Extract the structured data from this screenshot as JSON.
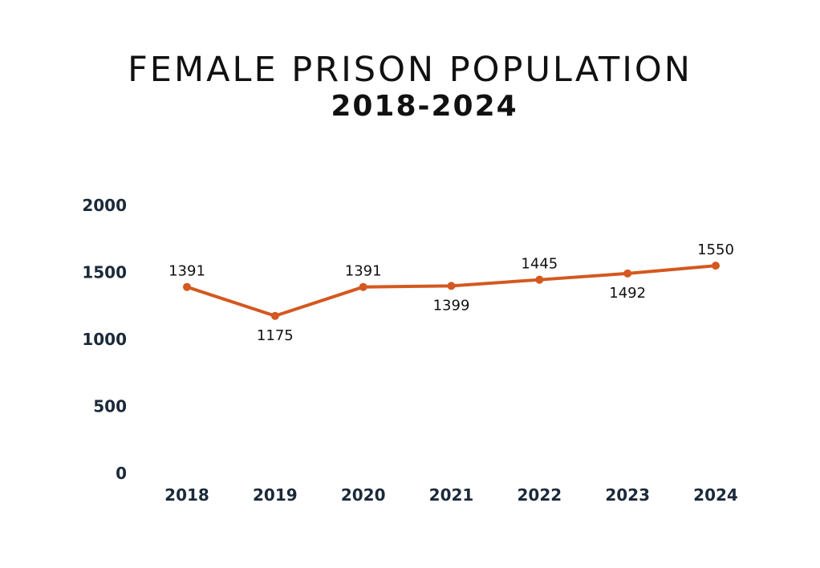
{
  "chart_data": {
    "type": "line",
    "title": "FEMALE PRISON POPULATION",
    "subtitle": "2018-2024",
    "xlabel": "",
    "ylabel": "",
    "categories": [
      "2018",
      "2019",
      "2020",
      "2021",
      "2022",
      "2023",
      "2024"
    ],
    "series": [
      {
        "name": "Female prison population",
        "values": [
          1391,
          1175,
          1391,
          1399,
          1445,
          1492,
          1550
        ],
        "labels": [
          "1391",
          "1175",
          "1391",
          "1399",
          "1445",
          "1492",
          "1550"
        ],
        "label_positions": [
          "above",
          "below",
          "above",
          "below",
          "above",
          "below",
          "above"
        ]
      }
    ],
    "ylim": [
      0,
      2000
    ],
    "yticks": [
      "0",
      "500",
      "1000",
      "1500",
      "2000"
    ],
    "ytick_values": [
      0,
      500,
      1000,
      1500,
      2000
    ],
    "grid": false,
    "legend": "none",
    "line_color": "#d4581f"
  }
}
